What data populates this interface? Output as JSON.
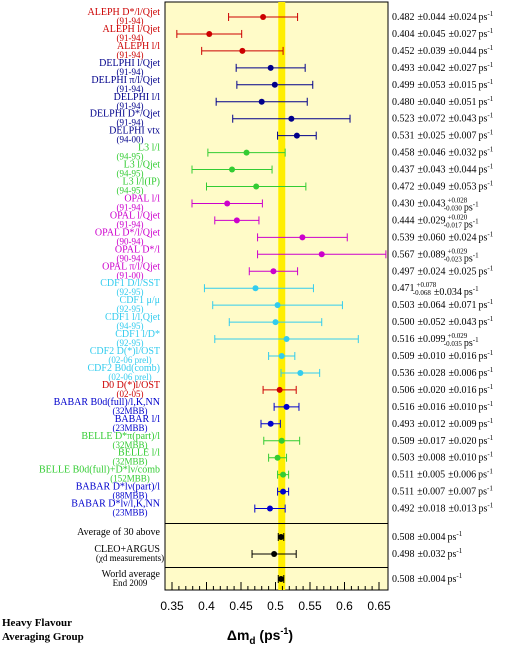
{
  "chart_data": {
    "type": "errorbar",
    "title": "",
    "xlabel": "Δm_d (ps^-1)",
    "xlim": [
      0.35,
      0.65
    ],
    "xticks": [
      "0.35",
      "0.4",
      "0.45",
      "0.5",
      "0.55",
      "0.6",
      "0.65"
    ],
    "band": {
      "center": 0.508,
      "halfwidth": 0.004,
      "color": "#ffee00"
    },
    "panel_color": "#fffbc8",
    "footer": [
      "Heavy Flavour",
      "Averaging Group"
    ],
    "groups": [
      {
        "name": "measurements",
        "rows": [
          {
            "label": "ALEPH D*/l/Qjet",
            "sub": "(91-94)",
            "color": "#cc0000",
            "value": 0.482,
            "lo": 0.432,
            "hi": 0.532,
            "result": "0.482 ±0.044 ±0.024 ps-1"
          },
          {
            "label": "ALEPH l/Qjet",
            "sub": "(91-94)",
            "color": "#cc0000",
            "value": 0.404,
            "lo": 0.357,
            "hi": 0.451,
            "result": "0.404 ±0.045 ±0.027 ps-1"
          },
          {
            "label": "ALEPH l/l",
            "sub": "(91-94)",
            "color": "#cc0000",
            "value": 0.452,
            "lo": 0.393,
            "hi": 0.511,
            "result": "0.452 ±0.039 ±0.044 ps-1"
          },
          {
            "label": "DELPHI l/Qjet",
            "sub": "(91-94)",
            "color": "#00008b",
            "value": 0.493,
            "lo": 0.443,
            "hi": 0.543,
            "result": "0.493 ±0.042 ±0.027 ps-1"
          },
          {
            "label": "DELPHI π/l/Qjet",
            "sub": "(91-94)",
            "color": "#00008b",
            "value": 0.499,
            "lo": 0.444,
            "hi": 0.554,
            "result": "0.499 ±0.053 ±0.015 ps-1"
          },
          {
            "label": "DELPHI l/l",
            "sub": "(91-94)",
            "color": "#00008b",
            "value": 0.48,
            "lo": 0.414,
            "hi": 0.546,
            "result": "0.480 ±0.040 ±0.051 ps-1"
          },
          {
            "label": "DELPHI D*/Qjet",
            "sub": "(91-94)",
            "color": "#00008b",
            "value": 0.523,
            "lo": 0.438,
            "hi": 0.608,
            "result": "0.523 ±0.072 ±0.043 ps-1"
          },
          {
            "label": "DELPHI vtx",
            "sub": "(94-00)",
            "color": "#00008b",
            "value": 0.531,
            "lo": 0.503,
            "hi": 0.559,
            "result": "0.531 ±0.025 ±0.007 ps-1"
          },
          {
            "label": "L3 l/l",
            "sub": "(94-95)",
            "color": "#33cc33",
            "value": 0.458,
            "lo": 0.402,
            "hi": 0.514,
            "result": "0.458 ±0.046 ±0.032 ps-1"
          },
          {
            "label": "L3 l/Qjet",
            "sub": "(94-95)",
            "color": "#33cc33",
            "value": 0.437,
            "lo": 0.379,
            "hi": 0.495,
            "result": "0.437 ±0.043 ±0.044 ps-1"
          },
          {
            "label": "L3 l/l(IP)",
            "sub": "(94-95)",
            "color": "#33cc33",
            "value": 0.472,
            "lo": 0.4,
            "hi": 0.544,
            "result": "0.472 ±0.049 ±0.053 ps-1"
          },
          {
            "label": "OPAL l/l",
            "sub": "(91-94)",
            "color": "#cc00cc",
            "value": 0.43,
            "lo": 0.379,
            "hi": 0.481,
            "result": "0.430 ±0.043 +0.028 -0.030 ps-1"
          },
          {
            "label": "OPAL l/Qjet",
            "sub": "(91-94)",
            "color": "#cc00cc",
            "value": 0.444,
            "lo": 0.412,
            "hi": 0.476,
            "result": "0.444 ±0.029 +0.020 -0.017 ps-1"
          },
          {
            "label": "OPAL D*/l/Qjet",
            "sub": "(90-94)",
            "color": "#cc00cc",
            "value": 0.539,
            "lo": 0.474,
            "hi": 0.604,
            "result": "0.539 ±0.060 ±0.024 ps-1"
          },
          {
            "label": "OPAL D*/l",
            "sub": "(90-94)",
            "color": "#cc00cc",
            "value": 0.567,
            "lo": 0.474,
            "hi": 0.66,
            "result": "0.567 ±0.089 +0.029 -0.023 ps-1"
          },
          {
            "label": "OPAL π/l/Qjet",
            "sub": "(91-00)",
            "color": "#cc00cc",
            "value": 0.497,
            "lo": 0.462,
            "hi": 0.532,
            "result": "0.497 ±0.024 ±0.025 ps-1"
          },
          {
            "label": "CDF1 D/l/SST",
            "sub": "(92-95)",
            "color": "#33ccee",
            "value": 0.471,
            "lo": 0.397,
            "hi": 0.555,
            "result": "0.471 +0.078 -0.068 ±0.034 ps-1"
          },
          {
            "label": "CDF1 μ/μ",
            "sub": "(92-95)",
            "color": "#33ccee",
            "value": 0.503,
            "lo": 0.409,
            "hi": 0.597,
            "result": "0.503 ±0.064 ±0.071 ps-1"
          },
          {
            "label": "CDF1 l/l,Qjet",
            "sub": "(94-95)",
            "color": "#33ccee",
            "value": 0.5,
            "lo": 0.433,
            "hi": 0.567,
            "result": "0.500 ±0.052 ±0.043 ps-1"
          },
          {
            "label": "CDF1 l/D*",
            "sub": "(92-95)",
            "color": "#33ccee",
            "value": 0.516,
            "lo": 0.412,
            "hi": 0.62,
            "result": "0.516 ±0.099 +0.029 -0.035 ps-1"
          },
          {
            "label": "CDF2 D(*)l/OST",
            "sub": "(02-06 prel)",
            "color": "#33ccee",
            "value": 0.509,
            "lo": 0.49,
            "hi": 0.528,
            "result": "0.509 ±0.010 ±0.016 ps-1"
          },
          {
            "label": "CDF2 B0d(comb)",
            "sub": "(02-06 prel)",
            "color": "#33ccee",
            "value": 0.536,
            "lo": 0.508,
            "hi": 0.564,
            "result": "0.536 ±0.028 ±0.006 ps-1"
          },
          {
            "label": "D0 D(*)l/OST",
            "sub": "(02-05)",
            "color": "#cc0000",
            "value": 0.506,
            "lo": 0.482,
            "hi": 0.53,
            "result": "0.506 ±0.020 ±0.016 ps-1"
          },
          {
            "label": "BABAR B0d(full)/l,K,NN",
            "sub": "(32MBB)",
            "color": "#0000cc",
            "value": 0.516,
            "lo": 0.498,
            "hi": 0.534,
            "result": "0.516 ±0.016 ±0.010 ps-1"
          },
          {
            "label": "BABAR l/l",
            "sub": "(23MBB)",
            "color": "#0000cc",
            "value": 0.493,
            "lo": 0.479,
            "hi": 0.507,
            "result": "0.493 ±0.012 ±0.009 ps-1"
          },
          {
            "label": "BELLE D*π(part)/l",
            "sub": "(32MBB)",
            "color": "#33cc33",
            "value": 0.509,
            "lo": 0.483,
            "hi": 0.535,
            "result": "0.509 ±0.017 ±0.020 ps-1"
          },
          {
            "label": "BELLE l/l",
            "sub": "(32MBB)",
            "color": "#33cc33",
            "value": 0.503,
            "lo": 0.49,
            "hi": 0.516,
            "result": "0.503 ±0.008 ±0.010 ps-1"
          },
          {
            "label": "BELLE B0d(full)+D*lν/comb",
            "sub": "(152MBB)",
            "color": "#33cc33",
            "value": 0.511,
            "lo": 0.503,
            "hi": 0.519,
            "result": "0.511 ±0.005 ±0.006 ps-1"
          },
          {
            "label": "BABAR D*lν(part)/l",
            "sub": "(88MBB)",
            "color": "#0000cc",
            "value": 0.511,
            "lo": 0.503,
            "hi": 0.519,
            "result": "0.511 ±0.007 ±0.007 ps-1"
          },
          {
            "label": "BABAR D*lν/l,K,NN",
            "sub": "(23MBB)",
            "color": "#0000cc",
            "value": 0.492,
            "lo": 0.47,
            "hi": 0.514,
            "result": "0.492 ±0.018 ±0.013 ps-1"
          }
        ]
      },
      {
        "name": "averages",
        "rows": [
          {
            "label": "Average of 30 above",
            "sub": "",
            "color": "#000000",
            "value": 0.508,
            "lo": 0.504,
            "hi": 0.512,
            "result": "0.508 ±0.004 ps-1"
          },
          {
            "label": "CLEO+ARGUS",
            "sub": "(χd measurements)",
            "color": "#000000",
            "value": 0.498,
            "lo": 0.466,
            "hi": 0.53,
            "result": "0.498 ±0.032 ps-1"
          }
        ]
      },
      {
        "name": "world",
        "rows": [
          {
            "label": "World average",
            "sub": "End 2009",
            "color": "#000000",
            "value": 0.508,
            "lo": 0.504,
            "hi": 0.512,
            "result": "0.508 ±0.004 ps-1"
          }
        ]
      }
    ]
  }
}
